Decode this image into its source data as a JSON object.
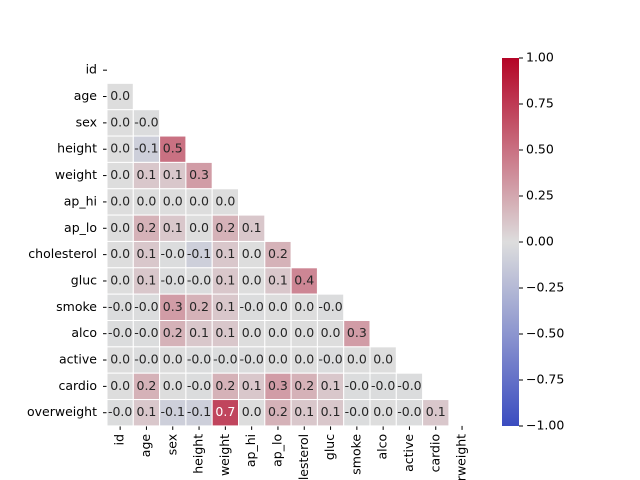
{
  "chart_data": {
    "type": "heatmap",
    "categories": [
      "id",
      "age",
      "sex",
      "height",
      "weight",
      "ap_hi",
      "ap_lo",
      "cholesterol",
      "gluc",
      "smoke",
      "alco",
      "active",
      "cardio",
      "overweight"
    ],
    "values": [
      [
        null,
        null,
        null,
        null,
        null,
        null,
        null,
        null,
        null,
        null,
        null,
        null,
        null,
        null
      ],
      [
        0,
        null,
        null,
        null,
        null,
        null,
        null,
        null,
        null,
        null,
        null,
        null,
        null,
        null
      ],
      [
        0,
        -0.01,
        null,
        null,
        null,
        null,
        null,
        null,
        null,
        null,
        null,
        null,
        null,
        null
      ],
      [
        0,
        -0.1,
        0.5,
        null,
        null,
        null,
        null,
        null,
        null,
        null,
        null,
        null,
        null,
        null
      ],
      [
        0,
        0.1,
        0.1,
        0.3,
        null,
        null,
        null,
        null,
        null,
        null,
        null,
        null,
        null,
        null
      ],
      [
        0,
        0,
        0,
        0,
        0,
        null,
        null,
        null,
        null,
        null,
        null,
        null,
        null,
        null
      ],
      [
        0,
        0.2,
        0.1,
        0,
        0.2,
        0.1,
        null,
        null,
        null,
        null,
        null,
        null,
        null,
        null
      ],
      [
        0,
        0.1,
        -0.01,
        -0.1,
        0.1,
        0,
        0.2,
        null,
        null,
        null,
        null,
        null,
        null,
        null
      ],
      [
        0,
        0.1,
        -0.01,
        -0.01,
        0.1,
        0,
        0.1,
        0.4,
        null,
        null,
        null,
        null,
        null,
        null
      ],
      [
        -0.01,
        -0.01,
        0.3,
        0.2,
        0.1,
        -0.01,
        0,
        0,
        -0.01,
        null,
        null,
        null,
        null,
        null
      ],
      [
        -0.01,
        -0.01,
        0.2,
        0.1,
        0.1,
        0,
        0,
        0,
        0,
        0.3,
        null,
        null,
        null,
        null
      ],
      [
        0,
        -0.01,
        0,
        -0.01,
        -0.01,
        -0.01,
        0,
        0,
        -0.01,
        0,
        0,
        null,
        null,
        null
      ],
      [
        0,
        0.2,
        0,
        -0.01,
        0.2,
        0.1,
        0.3,
        0.2,
        0.1,
        -0.01,
        -0.01,
        -0.01,
        null,
        null
      ],
      [
        -0.01,
        0.1,
        -0.1,
        -0.1,
        0.7,
        0,
        0.2,
        0.1,
        0.1,
        -0.01,
        0,
        -0.01,
        0.1,
        null
      ]
    ],
    "value_labels": [
      [
        null,
        null,
        null,
        null,
        null,
        null,
        null,
        null,
        null,
        null,
        null,
        null,
        null,
        null
      ],
      [
        "0.0",
        null,
        null,
        null,
        null,
        null,
        null,
        null,
        null,
        null,
        null,
        null,
        null,
        null
      ],
      [
        "0.0",
        "-0.0",
        null,
        null,
        null,
        null,
        null,
        null,
        null,
        null,
        null,
        null,
        null,
        null
      ],
      [
        "0.0",
        "-0.1",
        "0.5",
        null,
        null,
        null,
        null,
        null,
        null,
        null,
        null,
        null,
        null,
        null
      ],
      [
        "0.0",
        "0.1",
        "0.1",
        "0.3",
        null,
        null,
        null,
        null,
        null,
        null,
        null,
        null,
        null,
        null
      ],
      [
        "0.0",
        "0.0",
        "0.0",
        "0.0",
        "0.0",
        null,
        null,
        null,
        null,
        null,
        null,
        null,
        null,
        null
      ],
      [
        "0.0",
        "0.2",
        "0.1",
        "0.0",
        "0.2",
        "0.1",
        null,
        null,
        null,
        null,
        null,
        null,
        null,
        null
      ],
      [
        "0.0",
        "0.1",
        "-0.0",
        "-0.1",
        "0.1",
        "0.0",
        "0.2",
        null,
        null,
        null,
        null,
        null,
        null,
        null
      ],
      [
        "0.0",
        "0.1",
        "-0.0",
        "-0.0",
        "0.1",
        "0.0",
        "0.1",
        "0.4",
        null,
        null,
        null,
        null,
        null,
        null
      ],
      [
        "-0.0",
        "-0.0",
        "0.3",
        "0.2",
        "0.1",
        "-0.0",
        "0.0",
        "0.0",
        "-0.0",
        null,
        null,
        null,
        null,
        null
      ],
      [
        "-0.0",
        "-0.0",
        "0.2",
        "0.1",
        "0.1",
        "0.0",
        "0.0",
        "0.0",
        "0.0",
        "0.3",
        null,
        null,
        null,
        null
      ],
      [
        "0.0",
        "-0.0",
        "0.0",
        "-0.0",
        "-0.0",
        "-0.0",
        "0.0",
        "0.0",
        "-0.0",
        "0.0",
        "0.0",
        null,
        null,
        null
      ],
      [
        "0.0",
        "0.2",
        "0.0",
        "-0.0",
        "0.2",
        "0.1",
        "0.3",
        "0.2",
        "0.1",
        "-0.0",
        "-0.0",
        "-0.0",
        null,
        null
      ],
      [
        "-0.0",
        "0.1",
        "-0.1",
        "-0.1",
        "0.7",
        "0.0",
        "0.2",
        "0.1",
        "0.1",
        "-0.0",
        "0.0",
        "-0.0",
        "0.1",
        null
      ]
    ],
    "colors": [
      "#3b4cc0",
      "#dddddd",
      "#b40426"
    ],
    "zlim": [
      -1,
      1
    ],
    "zticks": [
      {
        "value": 1,
        "label": "1.00"
      },
      {
        "value": 0.75,
        "label": "0.75"
      },
      {
        "value": 0.5,
        "label": "0.50"
      },
      {
        "value": 0.25,
        "label": "0.25"
      },
      {
        "value": 0,
        "label": "0.00"
      },
      {
        "value": -0.25,
        "label": "−0.25"
      },
      {
        "value": -0.5,
        "label": "−0.50"
      },
      {
        "value": -0.75,
        "label": "−0.75"
      },
      {
        "value": -1,
        "label": "−1.00"
      }
    ]
  }
}
